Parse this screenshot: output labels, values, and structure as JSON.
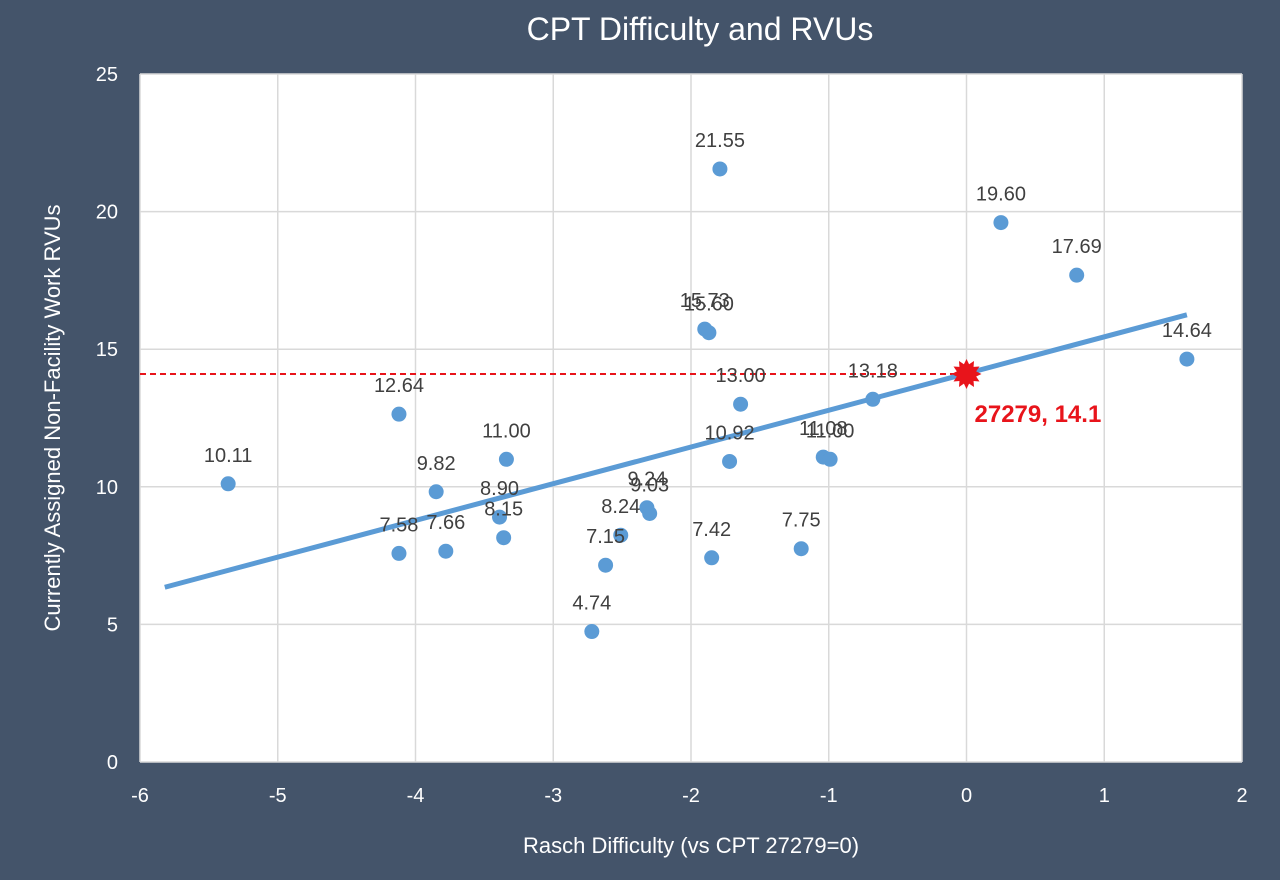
{
  "chart_data": {
    "type": "scatter",
    "title": "CPT Difficulty and RVUs",
    "xlabel": "Rasch Difficulty (vs CPT 27279=0)",
    "ylabel": "Currently Assigned Non-Facility Work RVUs",
    "xlim": [
      -6,
      2
    ],
    "ylim": [
      0,
      25
    ],
    "x_ticks": [
      "-6",
      "-5",
      "-4",
      "-3",
      "-2",
      "-1",
      "0",
      "1",
      "2"
    ],
    "y_ticks": [
      "0",
      "5",
      "10",
      "15",
      "20",
      "25"
    ],
    "grid": true,
    "series": [
      {
        "points": [
          {
            "x": -5.36,
            "y": 10.11,
            "label": "10.11"
          },
          {
            "x": -4.12,
            "y": 12.64,
            "label": "12.64"
          },
          {
            "x": -4.12,
            "y": 7.58,
            "label": "7.58"
          },
          {
            "x": -3.85,
            "y": 9.82,
            "label": "9.82"
          },
          {
            "x": -3.78,
            "y": 7.66,
            "label": "7.66"
          },
          {
            "x": -3.39,
            "y": 8.9,
            "label": "8.90"
          },
          {
            "x": -3.36,
            "y": 8.15,
            "label": "8.15"
          },
          {
            "x": -3.34,
            "y": 11.0,
            "label": "11.00"
          },
          {
            "x": -2.72,
            "y": 4.74,
            "label": "4.74"
          },
          {
            "x": -2.62,
            "y": 7.15,
            "label": "7.15"
          },
          {
            "x": -2.51,
            "y": 8.24,
            "label": "8.24"
          },
          {
            "x": -2.32,
            "y": 9.24,
            "label": "9.24"
          },
          {
            "x": -2.3,
            "y": 9.03,
            "label": "9.03"
          },
          {
            "x": -1.9,
            "y": 15.73,
            "label": "15.73"
          },
          {
            "x": -1.87,
            "y": 15.6,
            "label": "15.60"
          },
          {
            "x": -1.85,
            "y": 7.42,
            "label": "7.42"
          },
          {
            "x": -1.79,
            "y": 21.55,
            "label": "21.55"
          },
          {
            "x": -1.72,
            "y": 10.92,
            "label": "10.92"
          },
          {
            "x": -1.64,
            "y": 13.0,
            "label": "13.00"
          },
          {
            "x": -1.2,
            "y": 7.75,
            "label": "7.75"
          },
          {
            "x": -1.04,
            "y": 11.08,
            "label": "11.08"
          },
          {
            "x": -0.99,
            "y": 11.0,
            "label": "11.00"
          },
          {
            "x": -0.68,
            "y": 13.18,
            "label": "13.18"
          },
          {
            "x": 0.25,
            "y": 19.6,
            "label": "19.60"
          },
          {
            "x": 0.8,
            "y": 17.69,
            "label": "17.69"
          },
          {
            "x": 1.6,
            "y": 14.64,
            "label": "14.64"
          }
        ]
      }
    ],
    "trendline": {
      "x": [
        -5.82,
        1.6
      ],
      "y": [
        6.35,
        16.25
      ]
    },
    "highlight": {
      "x": 0,
      "y": 14.1,
      "label": "27279, 14.1"
    },
    "reference_line": {
      "y": 14.1,
      "x_from": -6,
      "x_to": 0
    },
    "colors": {
      "background": "#44546A",
      "plot_area": "#FFFFFF",
      "gridline": "#D9D9D9",
      "marker": "#5B9BD5",
      "trendline": "#5B9BD5",
      "highlight": "#E8141B",
      "data_label": "#404040",
      "text_on_background": "#FFFFFF"
    }
  }
}
